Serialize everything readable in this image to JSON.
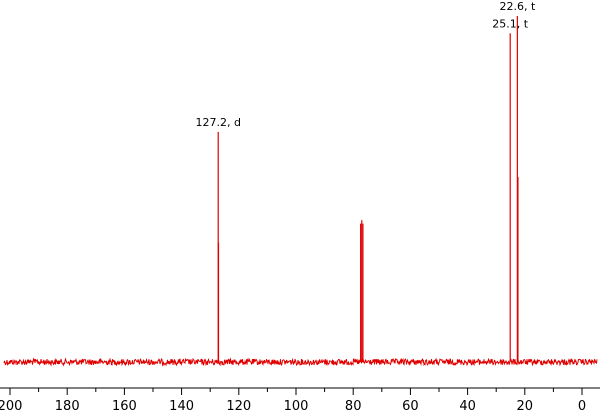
{
  "chart_data": {
    "type": "line",
    "title": "",
    "xlabel": "",
    "ylabel": "",
    "xlim": [
      205,
      -5
    ],
    "x_reversed": true,
    "x_ticks": [
      200,
      180,
      160,
      140,
      120,
      100,
      80,
      60,
      40,
      20,
      0
    ],
    "x_tick_labels": [
      "200",
      "180",
      "160",
      "140",
      "120",
      "100",
      "80",
      "60",
      "40",
      "20",
      "0"
    ],
    "ylim": [
      0,
      1.0
    ],
    "baseline": 0.0,
    "grid": false,
    "line_color": "#e00000",
    "axis_color": "#000000",
    "peaks": [
      {
        "x": 127.2,
        "y": 0.665,
        "label": "127.2, d",
        "labeled": true
      },
      {
        "x": 127.1,
        "y": 0.345,
        "label": "",
        "labeled": false
      },
      {
        "x": 77.4,
        "y": 0.4,
        "label": "",
        "labeled": false
      },
      {
        "x": 77.0,
        "y": 0.41,
        "label": "",
        "labeled": false
      },
      {
        "x": 76.6,
        "y": 0.4,
        "label": "",
        "labeled": false
      },
      {
        "x": 25.1,
        "y": 0.95,
        "label": "25.1, t",
        "labeled": true
      },
      {
        "x": 22.6,
        "y": 1.0,
        "label": "22.6, t",
        "labeled": true
      },
      {
        "x": 22.4,
        "y": 0.535,
        "label": "",
        "labeled": false
      }
    ]
  }
}
